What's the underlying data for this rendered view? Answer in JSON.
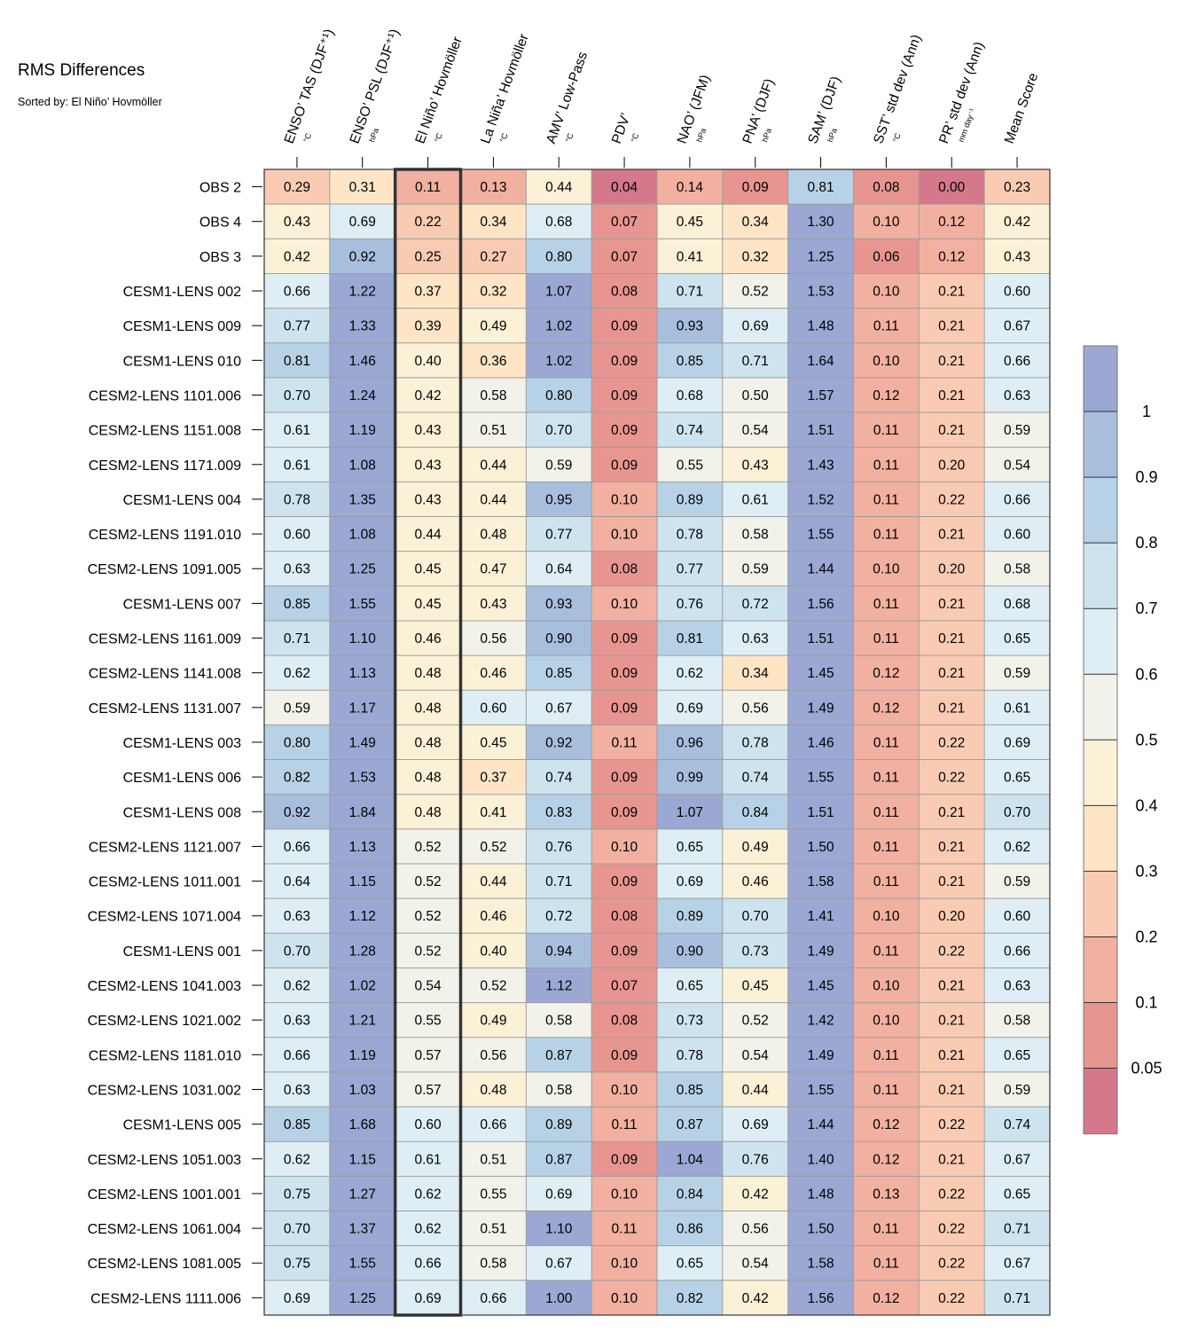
{
  "title": "RMS Differences",
  "subtitle": "Sorted by: El Niño’ Hovmöller",
  "chart_data": {
    "type": "heatmap",
    "columns": [
      {
        "name": "ENSO’ TAS (DJF⁺¹)",
        "unit": "°C"
      },
      {
        "name": "ENSO’ PSL (DJF⁺¹)",
        "unit": "hPa"
      },
      {
        "name": "El Niño’ Hovmöller",
        "unit": "°C"
      },
      {
        "name": "La Niña’ Hovmöller",
        "unit": "°C"
      },
      {
        "name": "AMV’ Low-Pass",
        "unit": "°C"
      },
      {
        "name": "PDV’",
        "unit": "°C"
      },
      {
        "name": "NAO’ (JFM)",
        "unit": "hPa"
      },
      {
        "name": "PNA’ (DJF)",
        "unit": "hPa"
      },
      {
        "name": "SAM’ (DJF)",
        "unit": "hPa"
      },
      {
        "name": "SST’ std dev (Ann)",
        "unit": "°C"
      },
      {
        "name": "PR’ std dev (Ann)",
        "unit": "mm day⁻¹"
      },
      {
        "name": "Mean Score",
        "unit": ""
      }
    ],
    "sorted_column": 2,
    "rows": [
      {
        "label": "OBS 2",
        "values": [
          "0.29",
          "0.31",
          "0.11",
          "0.13",
          "0.44",
          "0.04",
          "0.14",
          "0.09",
          "0.81",
          "0.08",
          "0.00",
          "0.23"
        ]
      },
      {
        "label": "OBS 4",
        "values": [
          "0.43",
          "0.69",
          "0.22",
          "0.34",
          "0.68",
          "0.07",
          "0.45",
          "0.34",
          "1.30",
          "0.10",
          "0.12",
          "0.42"
        ]
      },
      {
        "label": "OBS 3",
        "values": [
          "0.42",
          "0.92",
          "0.25",
          "0.27",
          "0.80",
          "0.07",
          "0.41",
          "0.32",
          "1.25",
          "0.06",
          "0.12",
          "0.43"
        ]
      },
      {
        "label": "CESM1-LENS 002",
        "values": [
          "0.66",
          "1.22",
          "0.37",
          "0.32",
          "1.07",
          "0.08",
          "0.71",
          "0.52",
          "1.53",
          "0.10",
          "0.21",
          "0.60"
        ]
      },
      {
        "label": "CESM1-LENS 009",
        "values": [
          "0.77",
          "1.33",
          "0.39",
          "0.49",
          "1.02",
          "0.09",
          "0.93",
          "0.69",
          "1.48",
          "0.11",
          "0.21",
          "0.67"
        ]
      },
      {
        "label": "CESM1-LENS 010",
        "values": [
          "0.81",
          "1.46",
          "0.40",
          "0.36",
          "1.02",
          "0.09",
          "0.85",
          "0.71",
          "1.64",
          "0.10",
          "0.21",
          "0.66"
        ]
      },
      {
        "label": "CESM2-LENS 1101.006",
        "values": [
          "0.70",
          "1.24",
          "0.42",
          "0.58",
          "0.80",
          "0.09",
          "0.68",
          "0.50",
          "1.57",
          "0.12",
          "0.21",
          "0.63"
        ]
      },
      {
        "label": "CESM2-LENS 1151.008",
        "values": [
          "0.61",
          "1.19",
          "0.43",
          "0.51",
          "0.70",
          "0.09",
          "0.74",
          "0.54",
          "1.51",
          "0.11",
          "0.21",
          "0.59"
        ]
      },
      {
        "label": "CESM2-LENS 1171.009",
        "values": [
          "0.61",
          "1.08",
          "0.43",
          "0.44",
          "0.59",
          "0.09",
          "0.55",
          "0.43",
          "1.43",
          "0.11",
          "0.20",
          "0.54"
        ]
      },
      {
        "label": "CESM1-LENS 004",
        "values": [
          "0.78",
          "1.35",
          "0.43",
          "0.44",
          "0.95",
          "0.10",
          "0.89",
          "0.61",
          "1.52",
          "0.11",
          "0.22",
          "0.66"
        ]
      },
      {
        "label": "CESM2-LENS 1191.010",
        "values": [
          "0.60",
          "1.08",
          "0.44",
          "0.48",
          "0.77",
          "0.10",
          "0.78",
          "0.58",
          "1.55",
          "0.11",
          "0.21",
          "0.60"
        ]
      },
      {
        "label": "CESM2-LENS 1091.005",
        "values": [
          "0.63",
          "1.25",
          "0.45",
          "0.47",
          "0.64",
          "0.08",
          "0.77",
          "0.59",
          "1.44",
          "0.10",
          "0.20",
          "0.58"
        ]
      },
      {
        "label": "CESM1-LENS 007",
        "values": [
          "0.85",
          "1.55",
          "0.45",
          "0.43",
          "0.93",
          "0.10",
          "0.76",
          "0.72",
          "1.56",
          "0.11",
          "0.21",
          "0.68"
        ]
      },
      {
        "label": "CESM2-LENS 1161.009",
        "values": [
          "0.71",
          "1.10",
          "0.46",
          "0.56",
          "0.90",
          "0.09",
          "0.81",
          "0.63",
          "1.51",
          "0.11",
          "0.21",
          "0.65"
        ]
      },
      {
        "label": "CESM2-LENS 1141.008",
        "values": [
          "0.62",
          "1.13",
          "0.48",
          "0.46",
          "0.85",
          "0.09",
          "0.62",
          "0.34",
          "1.45",
          "0.12",
          "0.21",
          "0.59"
        ]
      },
      {
        "label": "CESM2-LENS 1131.007",
        "values": [
          "0.59",
          "1.17",
          "0.48",
          "0.60",
          "0.67",
          "0.09",
          "0.69",
          "0.56",
          "1.49",
          "0.12",
          "0.21",
          "0.61"
        ]
      },
      {
        "label": "CESM1-LENS 003",
        "values": [
          "0.80",
          "1.49",
          "0.48",
          "0.45",
          "0.92",
          "0.11",
          "0.96",
          "0.78",
          "1.46",
          "0.11",
          "0.22",
          "0.69"
        ]
      },
      {
        "label": "CESM1-LENS 006",
        "values": [
          "0.82",
          "1.53",
          "0.48",
          "0.37",
          "0.74",
          "0.09",
          "0.99",
          "0.74",
          "1.55",
          "0.11",
          "0.22",
          "0.65"
        ]
      },
      {
        "label": "CESM1-LENS 008",
        "values": [
          "0.92",
          "1.84",
          "0.48",
          "0.41",
          "0.83",
          "0.09",
          "1.07",
          "0.84",
          "1.51",
          "0.11",
          "0.21",
          "0.70"
        ]
      },
      {
        "label": "CESM2-LENS 1121.007",
        "values": [
          "0.66",
          "1.13",
          "0.52",
          "0.52",
          "0.76",
          "0.10",
          "0.65",
          "0.49",
          "1.50",
          "0.11",
          "0.21",
          "0.62"
        ]
      },
      {
        "label": "CESM2-LENS 1011.001",
        "values": [
          "0.64",
          "1.15",
          "0.52",
          "0.44",
          "0.71",
          "0.09",
          "0.69",
          "0.46",
          "1.58",
          "0.11",
          "0.21",
          "0.59"
        ]
      },
      {
        "label": "CESM2-LENS 1071.004",
        "values": [
          "0.63",
          "1.12",
          "0.52",
          "0.46",
          "0.72",
          "0.08",
          "0.89",
          "0.70",
          "1.41",
          "0.10",
          "0.20",
          "0.60"
        ]
      },
      {
        "label": "CESM1-LENS 001",
        "values": [
          "0.70",
          "1.28",
          "0.52",
          "0.40",
          "0.94",
          "0.09",
          "0.90",
          "0.73",
          "1.49",
          "0.11",
          "0.22",
          "0.66"
        ]
      },
      {
        "label": "CESM2-LENS 1041.003",
        "values": [
          "0.62",
          "1.02",
          "0.54",
          "0.52",
          "1.12",
          "0.07",
          "0.65",
          "0.45",
          "1.45",
          "0.10",
          "0.21",
          "0.63"
        ]
      },
      {
        "label": "CESM2-LENS 1021.002",
        "values": [
          "0.63",
          "1.21",
          "0.55",
          "0.49",
          "0.58",
          "0.08",
          "0.73",
          "0.52",
          "1.42",
          "0.10",
          "0.21",
          "0.58"
        ]
      },
      {
        "label": "CESM2-LENS 1181.010",
        "values": [
          "0.66",
          "1.19",
          "0.57",
          "0.56",
          "0.87",
          "0.09",
          "0.78",
          "0.54",
          "1.49",
          "0.11",
          "0.21",
          "0.65"
        ]
      },
      {
        "label": "CESM2-LENS 1031.002",
        "values": [
          "0.63",
          "1.03",
          "0.57",
          "0.48",
          "0.58",
          "0.10",
          "0.85",
          "0.44",
          "1.55",
          "0.11",
          "0.21",
          "0.59"
        ]
      },
      {
        "label": "CESM1-LENS 005",
        "values": [
          "0.85",
          "1.68",
          "0.60",
          "0.66",
          "0.89",
          "0.11",
          "0.87",
          "0.69",
          "1.44",
          "0.12",
          "0.22",
          "0.74"
        ]
      },
      {
        "label": "CESM2-LENS 1051.003",
        "values": [
          "0.62",
          "1.15",
          "0.61",
          "0.51",
          "0.87",
          "0.09",
          "1.04",
          "0.76",
          "1.40",
          "0.12",
          "0.21",
          "0.67"
        ]
      },
      {
        "label": "CESM2-LENS 1001.001",
        "values": [
          "0.75",
          "1.27",
          "0.62",
          "0.55",
          "0.69",
          "0.10",
          "0.84",
          "0.42",
          "1.48",
          "0.13",
          "0.22",
          "0.65"
        ]
      },
      {
        "label": "CESM2-LENS 1061.004",
        "values": [
          "0.70",
          "1.37",
          "0.62",
          "0.51",
          "1.10",
          "0.11",
          "0.86",
          "0.56",
          "1.50",
          "0.11",
          "0.22",
          "0.71"
        ]
      },
      {
        "label": "CESM2-LENS 1081.005",
        "values": [
          "0.75",
          "1.55",
          "0.66",
          "0.58",
          "0.67",
          "0.10",
          "0.65",
          "0.54",
          "1.58",
          "0.11",
          "0.22",
          "0.67"
        ]
      },
      {
        "label": "CESM2-LENS 1111.006",
        "values": [
          "0.69",
          "1.25",
          "0.69",
          "0.66",
          "1.00",
          "0.10",
          "0.82",
          "0.42",
          "1.56",
          "0.12",
          "0.22",
          "0.71"
        ]
      }
    ],
    "colorbar": {
      "levels": [
        0.05,
        0.1,
        0.2,
        0.3,
        0.4,
        0.5,
        0.6,
        0.7,
        0.8,
        0.9,
        1
      ],
      "tick_labels": [
        "0.05",
        "0.1",
        "0.2",
        "0.3",
        "0.4",
        "0.5",
        "0.6",
        "0.7",
        "0.8",
        "0.9",
        "1"
      ],
      "colors": [
        "#d5788b",
        "#e79591",
        "#f2b0a0",
        "#f9cbb2",
        "#fde5c6",
        "#fbf1d6",
        "#f3f2ea",
        "#deeef4",
        "#cde4ee",
        "#b7d2e6",
        "#a8bedd",
        "#9aa8d3"
      ]
    }
  }
}
